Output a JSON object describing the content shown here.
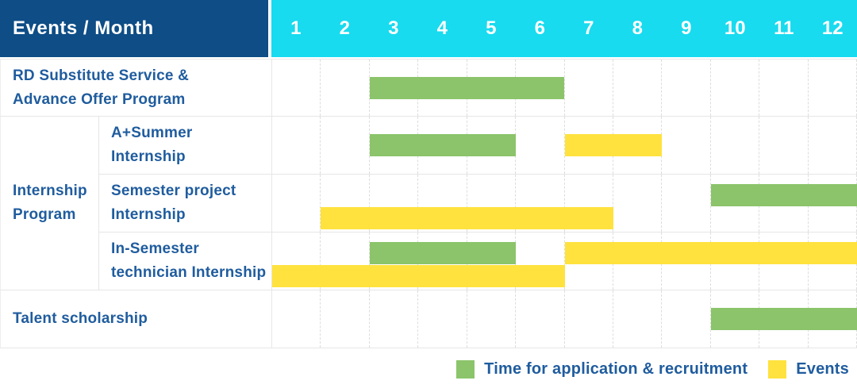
{
  "header": {
    "title": "Events / Month"
  },
  "chart_data": {
    "type": "bar",
    "subtype": "gantt-schedule",
    "title": "Events / Month",
    "months": [
      "1",
      "2",
      "3",
      "4",
      "5",
      "6",
      "7",
      "8",
      "9",
      "10",
      "11",
      "12"
    ],
    "x_range": [
      1,
      12
    ],
    "colors": {
      "header_title_bg": "#0E4D86",
      "header_months_bg": "#18DBEF",
      "header_text": "#FFFFFF",
      "label_text": "#1F5C9E",
      "application": "#8BC46A",
      "event": "#FFE23E",
      "grid_line": "#E6E6E6"
    },
    "legend": [
      {
        "key": "application",
        "label": "Time for application & recruitment",
        "color": "#8BC46A"
      },
      {
        "key": "event",
        "label": "Events",
        "color": "#FFE23E"
      }
    ],
    "group": {
      "label": "Internship\nProgram",
      "row_indexes": [
        1,
        2,
        3
      ]
    },
    "rows": [
      {
        "label": "RD Substitute Service &\nAdvance Offer Program",
        "grouped": false,
        "bars": [
          {
            "type": "application",
            "start_month": 3,
            "end_month": 6,
            "lane": "center"
          }
        ]
      },
      {
        "label": "A+Summer\nInternship",
        "grouped": true,
        "bars": [
          {
            "type": "application",
            "start_month": 3,
            "end_month": 5,
            "lane": "center"
          },
          {
            "type": "event",
            "start_month": 7,
            "end_month": 8,
            "lane": "center"
          }
        ]
      },
      {
        "label": "Semester project\nInternship",
        "grouped": true,
        "bars": [
          {
            "type": "application",
            "start_month": 10,
            "end_month": 12,
            "lane": "top"
          },
          {
            "type": "event",
            "start_month": 2,
            "end_month": 7,
            "lane": "bottom"
          }
        ]
      },
      {
        "label": "In-Semester\ntechnician Internship",
        "grouped": true,
        "bars": [
          {
            "type": "application",
            "start_month": 3,
            "end_month": 5,
            "lane": "top"
          },
          {
            "type": "event",
            "start_month": 7,
            "end_month": 12,
            "lane": "top"
          },
          {
            "type": "event",
            "start_month": 1,
            "end_month": 6,
            "lane": "bottom"
          }
        ]
      },
      {
        "label": "Talent scholarship",
        "grouped": false,
        "bars": [
          {
            "type": "application",
            "start_month": 10,
            "end_month": 12,
            "lane": "center"
          }
        ]
      }
    ]
  }
}
